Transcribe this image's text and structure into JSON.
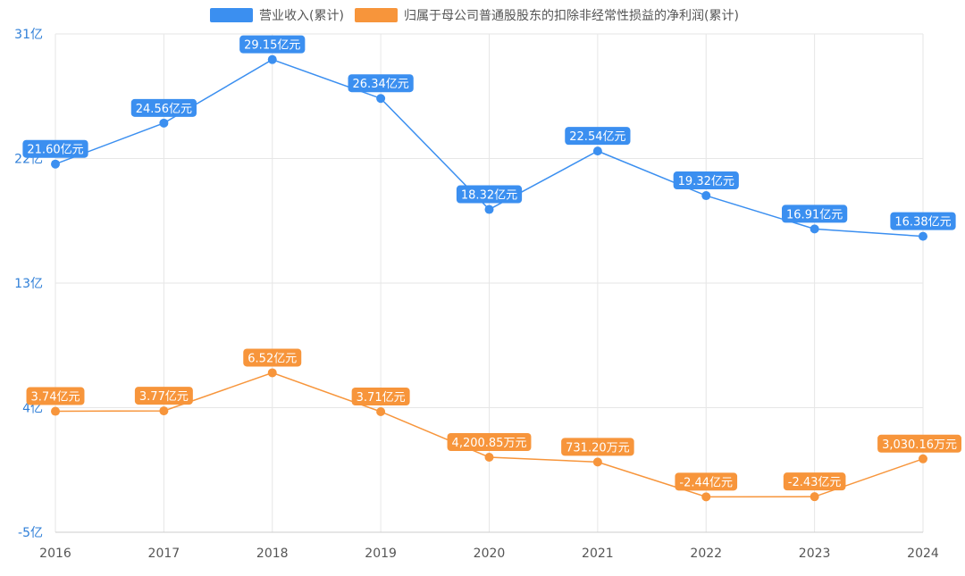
{
  "chart_data": {
    "type": "line",
    "categories": [
      "2016",
      "2017",
      "2018",
      "2019",
      "2020",
      "2021",
      "2022",
      "2023",
      "2024"
    ],
    "y_ticks": [
      "31亿",
      "22亿",
      "13亿",
      "4亿",
      "-5亿"
    ],
    "ylim": [
      -5,
      31
    ],
    "grid": true,
    "legend_position": "top-center",
    "series": [
      {
        "name": "营业收入(累计)",
        "color": "#3b8ff0",
        "values": [
          21.6,
          24.56,
          29.15,
          26.34,
          18.32,
          22.54,
          19.32,
          16.91,
          16.38
        ],
        "labels": [
          "21.60亿元",
          "24.56亿元",
          "29.15亿元",
          "26.34亿元",
          "18.32亿元",
          "22.54亿元",
          "19.32亿元",
          "16.91亿元",
          "16.38亿元"
        ]
      },
      {
        "name": "归属于母公司普通股股东的扣除非经常性损益的净利润(累计)",
        "color": "#f7953b",
        "values": [
          3.74,
          3.77,
          6.52,
          3.71,
          0.420085,
          0.07312,
          -2.44,
          -2.43,
          0.303016
        ],
        "labels": [
          "3.74亿元",
          "3.77亿元",
          "6.52亿元",
          "3.71亿元",
          "4,200.85万元",
          "731.20万元",
          "-2.44亿元",
          "-2.43亿元",
          "3,030.16万元"
        ]
      }
    ]
  }
}
